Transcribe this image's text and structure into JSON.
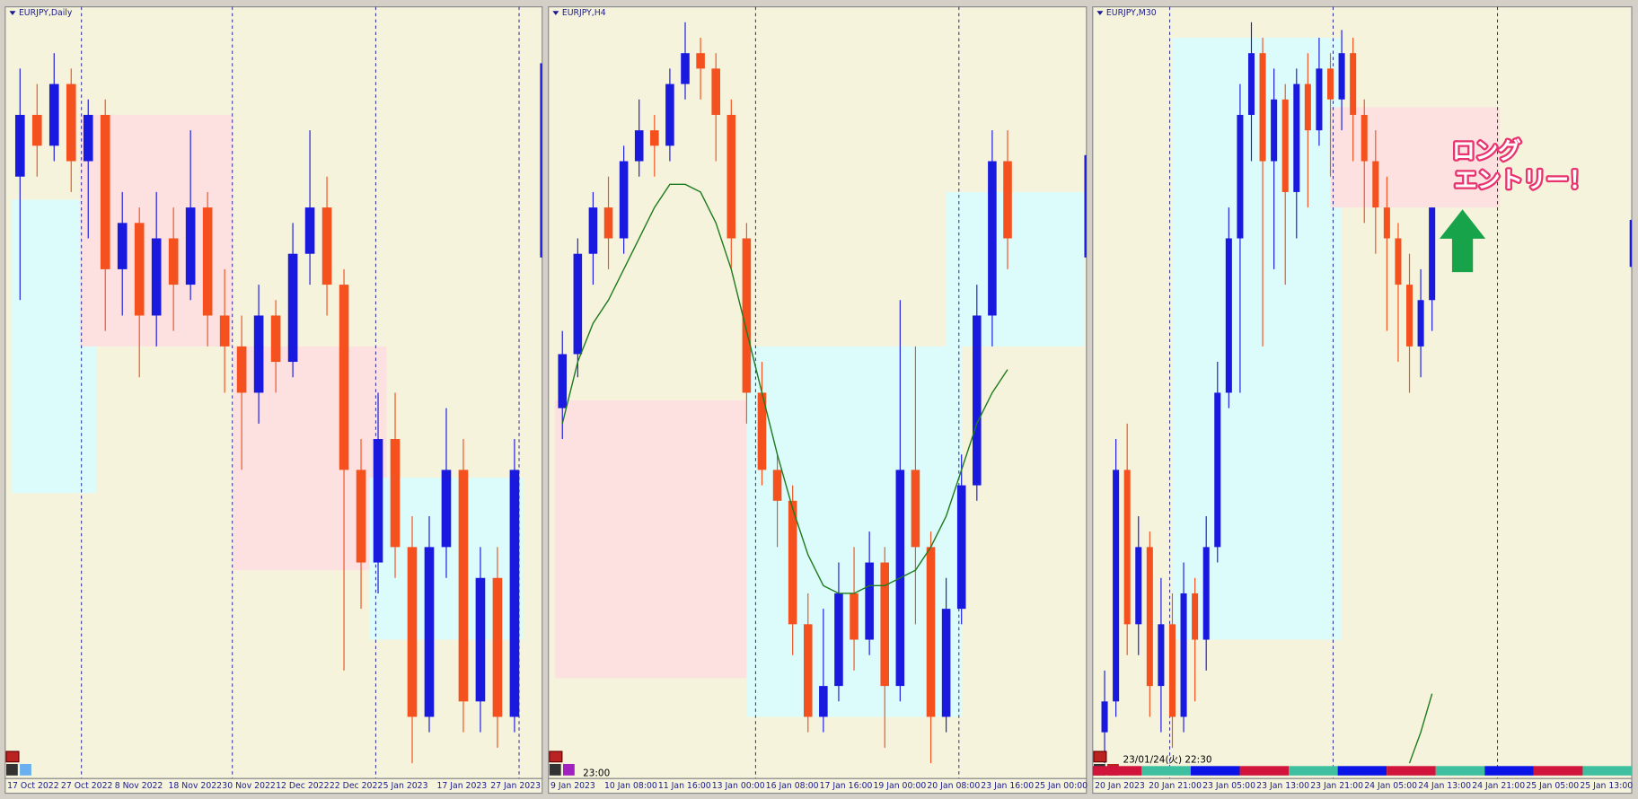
{
  "colors": {
    "up": "#1a1adf",
    "down": "#f4511e",
    "ma": "#1d7a1d",
    "background": "#f5f3dc",
    "grid": "#1a1a8c"
  },
  "panels": [
    {
      "title": "EURJPY,Daily",
      "ylim": [
        0,
        100
      ],
      "dates": [
        "17 Oct 2022",
        "27 Oct 2022",
        "8 Nov 2022",
        "18 Nov 2022",
        "30 Nov 2022",
        "12 Dec 2022",
        "22 Dec 2022",
        "5 Jan 2023",
        "17 Jan 2023",
        "27 Jan 2023"
      ],
      "zones": [
        {
          "from": 0,
          "to": 4,
          "high": 75,
          "low": 37,
          "color": "#dcfcfc"
        },
        {
          "from": 4,
          "to": 12,
          "high": 86,
          "low": 56,
          "color": "#fde1e1"
        },
        {
          "from": 13,
          "to": 21,
          "high": 56,
          "low": 27,
          "color": "#fde1e1"
        },
        {
          "from": 21,
          "to": 29,
          "high": 39,
          "low": 18,
          "color": "#dcfcfc"
        }
      ],
      "candles": [
        [
          78,
          92,
          62,
          86
        ],
        [
          86,
          90,
          78,
          82
        ],
        [
          82,
          94,
          80,
          90
        ],
        [
          90,
          92,
          76,
          80
        ],
        [
          80,
          88,
          70,
          86
        ],
        [
          86,
          88,
          58,
          66
        ],
        [
          66,
          76,
          60,
          72
        ],
        [
          72,
          74,
          52,
          60
        ],
        [
          60,
          76,
          56,
          70
        ],
        [
          70,
          74,
          58,
          64
        ],
        [
          64,
          84,
          62,
          74
        ],
        [
          74,
          76,
          56,
          60
        ],
        [
          60,
          66,
          50,
          56
        ],
        [
          56,
          60,
          40,
          50
        ],
        [
          50,
          64,
          46,
          60
        ],
        [
          60,
          62,
          50,
          54
        ],
        [
          54,
          72,
          52,
          68
        ],
        [
          68,
          84,
          64,
          74
        ],
        [
          74,
          78,
          60,
          64
        ],
        [
          64,
          66,
          14,
          40
        ],
        [
          40,
          44,
          22,
          28
        ],
        [
          28,
          50,
          24,
          44
        ],
        [
          44,
          50,
          26,
          30
        ],
        [
          30,
          34,
          2,
          8
        ],
        [
          8,
          34,
          6,
          30
        ],
        [
          30,
          48,
          26,
          40
        ],
        [
          40,
          44,
          6,
          10
        ],
        [
          10,
          30,
          6,
          26
        ],
        [
          26,
          30,
          4,
          8
        ],
        [
          8,
          44,
          6,
          40
        ]
      ]
    },
    {
      "title": "EURJPY,H4",
      "time": "23:00",
      "ylim": [
        0,
        100
      ],
      "dates": [
        "9 Jan 2023",
        "10 Jan 08:00",
        "11 Jan 16:00",
        "13 Jan 00:00",
        "16 Jan 08:00",
        "17 Jan 16:00",
        "19 Jan 00:00",
        "20 Jan 08:00",
        "23 Jan 16:00",
        "25 Jan 00:00"
      ],
      "zones": [
        {
          "from": 0,
          "to": 12.5,
          "high": 49,
          "low": 13,
          "color": "#fde1e1"
        },
        {
          "from": 12.5,
          "to": 25.5,
          "high": 56,
          "low": 8,
          "color": "#dcfcfc"
        },
        {
          "from": 25.5,
          "to": 33.5,
          "high": 76,
          "low": 56,
          "color": "#dcfcfc"
        }
      ],
      "candles": [
        [
          48,
          58,
          44,
          55
        ],
        [
          55,
          70,
          52,
          68
        ],
        [
          68,
          76,
          64,
          74
        ],
        [
          74,
          78,
          66,
          70
        ],
        [
          70,
          82,
          68,
          80
        ],
        [
          80,
          88,
          78,
          84
        ],
        [
          84,
          86,
          78,
          82
        ],
        [
          82,
          92,
          80,
          90
        ],
        [
          90,
          98,
          88,
          94
        ],
        [
          94,
          96,
          88,
          92
        ],
        [
          92,
          94,
          80,
          86
        ],
        [
          86,
          88,
          66,
          70
        ],
        [
          70,
          72,
          46,
          50
        ],
        [
          50,
          54,
          38,
          40
        ],
        [
          40,
          42,
          30,
          36
        ],
        [
          36,
          38,
          16,
          20
        ],
        [
          20,
          24,
          6,
          8
        ],
        [
          8,
          22,
          6,
          12
        ],
        [
          12,
          28,
          10,
          24
        ],
        [
          24,
          30,
          14,
          18
        ],
        [
          18,
          32,
          16,
          28
        ],
        [
          28,
          30,
          4,
          12
        ],
        [
          12,
          62,
          10,
          40
        ],
        [
          40,
          56,
          20,
          30
        ],
        [
          30,
          32,
          2,
          8
        ],
        [
          8,
          26,
          6,
          22
        ],
        [
          22,
          42,
          20,
          38
        ],
        [
          38,
          64,
          36,
          60
        ],
        [
          60,
          84,
          56,
          80
        ],
        [
          80,
          84,
          66,
          70
        ]
      ],
      "ma": [
        46,
        54,
        59,
        62,
        66,
        70,
        74,
        77,
        77,
        76,
        72,
        66,
        58,
        50,
        42,
        35,
        29,
        25,
        24,
        24,
        25,
        25,
        26,
        27,
        30,
        34,
        40,
        46,
        50,
        53
      ]
    },
    {
      "title": "EURJPY,M30",
      "time": "23/01/24(火) 22:30",
      "ylim": [
        0,
        100
      ],
      "dates": [
        "20 Jan 2023",
        "20 Jan 21:00",
        "23 Jan 05:00",
        "23 Jan 13:00",
        "23 Jan 21:00",
        "24 Jan 05:00",
        "24 Jan 13:00",
        "24 Jan 21:00",
        "25 Jan 05:00",
        "25 Jan 13:00"
      ],
      "zones": [
        {
          "from": 6.5,
          "to": 20.5,
          "high": 96,
          "low": 18,
          "color": "#dcfcfc"
        },
        {
          "from": 20.5,
          "to": 34.5,
          "high": 87,
          "low": 74,
          "color": "#fde1e1"
        }
      ],
      "candles": [
        [
          6,
          14,
          2,
          10
        ],
        [
          10,
          44,
          8,
          40
        ],
        [
          40,
          46,
          16,
          20
        ],
        [
          20,
          34,
          16,
          30
        ],
        [
          30,
          32,
          8,
          12
        ],
        [
          12,
          26,
          6,
          20
        ],
        [
          20,
          24,
          4,
          8
        ],
        [
          8,
          28,
          6,
          24
        ],
        [
          24,
          26,
          10,
          18
        ],
        [
          18,
          34,
          14,
          30
        ],
        [
          30,
          54,
          28,
          50
        ],
        [
          50,
          74,
          48,
          70
        ],
        [
          70,
          90,
          50,
          86
        ],
        [
          86,
          98,
          80,
          94
        ],
        [
          94,
          96,
          56,
          80
        ],
        [
          80,
          92,
          66,
          88
        ],
        [
          88,
          90,
          64,
          76
        ],
        [
          76,
          92,
          70,
          90
        ],
        [
          90,
          94,
          74,
          84
        ],
        [
          84,
          96,
          82,
          92
        ],
        [
          92,
          94,
          78,
          88
        ],
        [
          88,
          97,
          84,
          94
        ],
        [
          94,
          96,
          80,
          86
        ],
        [
          86,
          88,
          72,
          80
        ],
        [
          80,
          84,
          68,
          74
        ],
        [
          74,
          78,
          58,
          70
        ],
        [
          70,
          72,
          54,
          64
        ],
        [
          64,
          68,
          50,
          56
        ],
        [
          56,
          66,
          52,
          62
        ],
        [
          62,
          74,
          58,
          74
        ]
      ],
      "ma": [
        null,
        null,
        null,
        null,
        null,
        null,
        null,
        null,
        null,
        null,
        null,
        null,
        null,
        null,
        null,
        null,
        null,
        null,
        null,
        null,
        null,
        null,
        null,
        null,
        null,
        null,
        null,
        2,
        6,
        11
      ],
      "annotation": [
        "ロング",
        "エントリー！"
      ]
    }
  ]
}
